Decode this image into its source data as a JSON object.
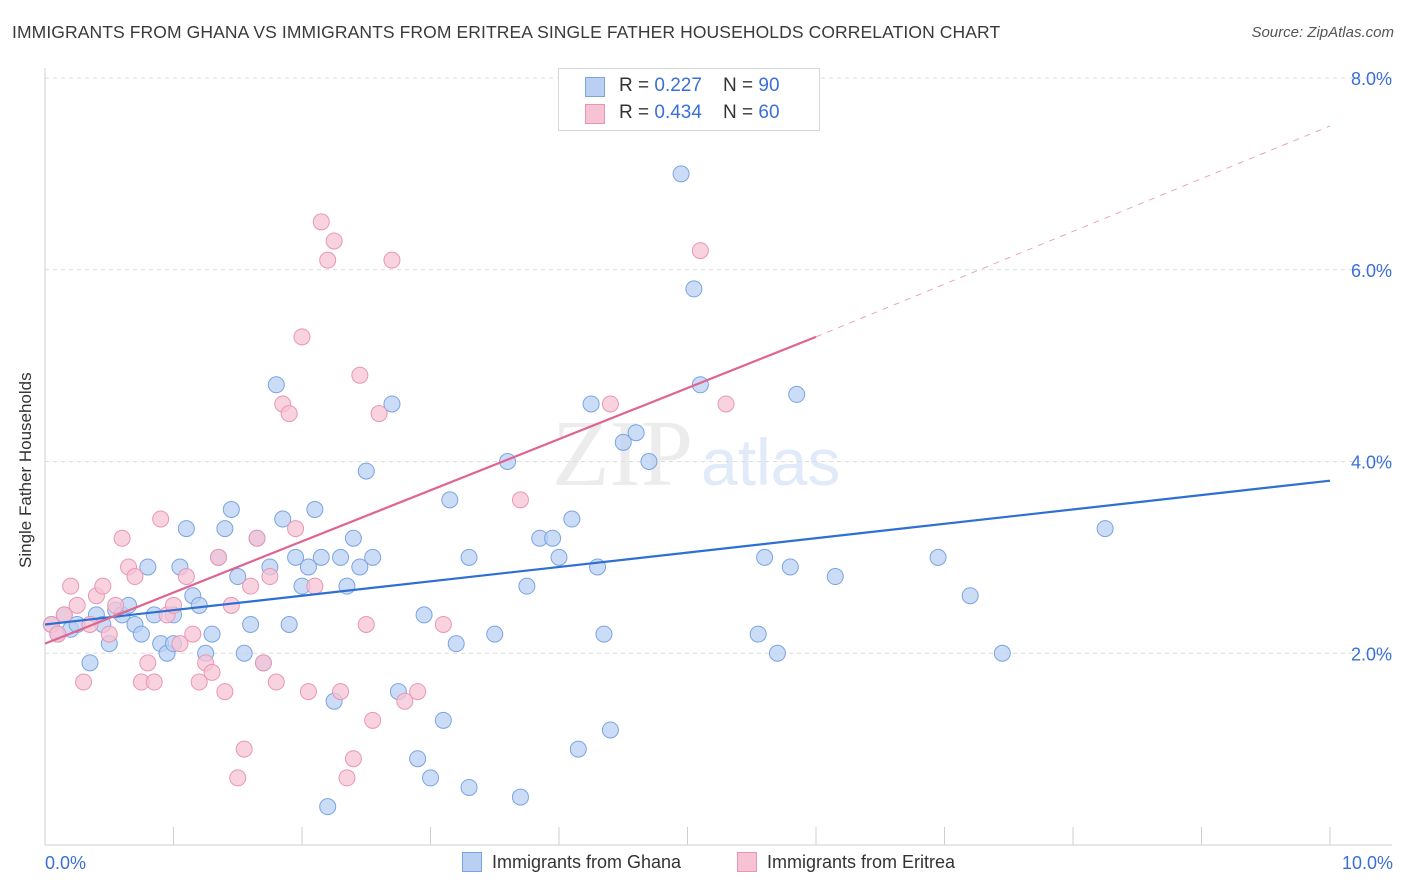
{
  "title": "IMMIGRANTS FROM GHANA VS IMMIGRANTS FROM ERITREA SINGLE FATHER HOUSEHOLDS CORRELATION CHART",
  "source": "Source: ZipAtlas.com",
  "watermark": {
    "zip": "ZIP",
    "atlas": "atlas"
  },
  "legend": {
    "rows": [
      {
        "r_label": "R = ",
        "r_value": "0.227",
        "n_label": "N = ",
        "n_value": "90"
      },
      {
        "r_label": "R = ",
        "r_value": "0.434",
        "n_label": "N = ",
        "n_value": "60"
      }
    ]
  },
  "bottom_legend": {
    "ghana": "Immigrants from Ghana",
    "eritrea": "Immigrants from Eritrea"
  },
  "colors": {
    "ghana_fill": "#b9d0f3",
    "ghana_stroke": "#7aa4e2",
    "ghana_line": "#2e6fd2",
    "eritrea_fill": "#f7c3d4",
    "eritrea_stroke": "#e996b4",
    "eritrea_line": "#e0648f",
    "tick_label": "#3a6fd8",
    "grid": "#dcdcdc"
  },
  "chart_data": {
    "type": "scatter",
    "title": "IMMIGRANTS FROM GHANA VS IMMIGRANTS FROM ERITREA SINGLE FATHER HOUSEHOLDS CORRELATION CHART",
    "xlabel": "",
    "ylabel": "Single Father Households",
    "xlim": [
      0,
      10
    ],
    "ylim": [
      0,
      8.0
    ],
    "x_tick_labels": [
      "0.0%",
      "10.0%"
    ],
    "y_ticks": [
      2.0,
      4.0,
      6.0,
      8.0
    ],
    "y_tick_labels": [
      "2.0%",
      "4.0%",
      "6.0%",
      "8.0%"
    ],
    "grid": "horizontal dashed",
    "legend_position": "top-center",
    "series": [
      {
        "name": "Immigrants from Ghana",
        "r": 0.227,
        "n": 90,
        "trend": {
          "x": [
            0,
            10
          ],
          "y": [
            2.3,
            3.8
          ],
          "style": "solid"
        },
        "points": [
          [
            0.05,
            2.3
          ],
          [
            0.1,
            2.2
          ],
          [
            0.15,
            2.4
          ],
          [
            0.2,
            2.25
          ],
          [
            0.25,
            2.3
          ],
          [
            0.35,
            1.9
          ],
          [
            0.4,
            2.4
          ],
          [
            0.45,
            2.3
          ],
          [
            0.5,
            2.1
          ],
          [
            0.55,
            2.45
          ],
          [
            0.6,
            2.4
          ],
          [
            0.65,
            2.5
          ],
          [
            0.7,
            2.3
          ],
          [
            0.75,
            2.2
          ],
          [
            0.8,
            2.9
          ],
          [
            0.85,
            2.4
          ],
          [
            0.9,
            2.1
          ],
          [
            0.95,
            2.0
          ],
          [
            1.0,
            2.4
          ],
          [
            1.05,
            2.9
          ],
          [
            1.1,
            3.3
          ],
          [
            1.15,
            2.6
          ],
          [
            1.2,
            2.5
          ],
          [
            1.25,
            2.0
          ],
          [
            1.3,
            2.2
          ],
          [
            1.35,
            3.0
          ],
          [
            1.4,
            3.3
          ],
          [
            1.45,
            3.5
          ],
          [
            1.5,
            2.8
          ],
          [
            1.55,
            2.0
          ],
          [
            1.6,
            2.3
          ],
          [
            1.65,
            3.2
          ],
          [
            1.7,
            1.9
          ],
          [
            1.75,
            2.9
          ],
          [
            1.8,
            4.8
          ],
          [
            1.85,
            3.4
          ],
          [
            1.9,
            2.3
          ],
          [
            1.95,
            3.0
          ],
          [
            2.0,
            2.7
          ],
          [
            2.05,
            2.9
          ],
          [
            2.1,
            3.5
          ],
          [
            2.15,
            3.0
          ],
          [
            2.2,
            0.4
          ],
          [
            2.25,
            1.5
          ],
          [
            2.3,
            3.0
          ],
          [
            2.35,
            2.7
          ],
          [
            2.4,
            3.2
          ],
          [
            2.45,
            2.9
          ],
          [
            2.5,
            3.9
          ],
          [
            2.55,
            3.0
          ],
          [
            2.7,
            4.6
          ],
          [
            2.75,
            1.6
          ],
          [
            2.9,
            0.9
          ],
          [
            2.95,
            2.4
          ],
          [
            3.0,
            0.7
          ],
          [
            3.1,
            1.3
          ],
          [
            3.15,
            3.6
          ],
          [
            3.2,
            2.1
          ],
          [
            3.3,
            0.6
          ],
          [
            3.3,
            3.0
          ],
          [
            3.5,
            2.2
          ],
          [
            3.6,
            4.0
          ],
          [
            3.7,
            0.5
          ],
          [
            3.75,
            2.7
          ],
          [
            3.85,
            3.2
          ],
          [
            3.95,
            3.2
          ],
          [
            4.0,
            3.0
          ],
          [
            4.1,
            3.4
          ],
          [
            4.15,
            1.0
          ],
          [
            4.25,
            4.6
          ],
          [
            4.3,
            2.9
          ],
          [
            4.35,
            2.2
          ],
          [
            4.4,
            1.2
          ],
          [
            4.5,
            4.2
          ],
          [
            4.6,
            4.3
          ],
          [
            4.7,
            4.0
          ],
          [
            4.95,
            7.0
          ],
          [
            5.05,
            5.8
          ],
          [
            5.1,
            4.8
          ],
          [
            5.55,
            2.2
          ],
          [
            5.6,
            3.0
          ],
          [
            5.7,
            2.0
          ],
          [
            5.8,
            2.9
          ],
          [
            5.85,
            4.7
          ],
          [
            6.15,
            2.8
          ],
          [
            6.95,
            3.0
          ],
          [
            7.2,
            2.6
          ],
          [
            7.45,
            2.0
          ],
          [
            8.25,
            3.3
          ],
          [
            1.0,
            2.1
          ]
        ]
      },
      {
        "name": "Immigrants from Eritrea",
        "r": 0.434,
        "n": 60,
        "trend": {
          "x": [
            0,
            6
          ],
          "y": [
            2.1,
            5.3
          ],
          "style": "solid"
        },
        "trend_extension": {
          "x": [
            6,
            10
          ],
          "y": [
            5.3,
            7.5
          ],
          "style": "dashed"
        },
        "points": [
          [
            0.05,
            2.3
          ],
          [
            0.1,
            2.2
          ],
          [
            0.15,
            2.4
          ],
          [
            0.2,
            2.7
          ],
          [
            0.25,
            2.5
          ],
          [
            0.3,
            1.7
          ],
          [
            0.35,
            2.3
          ],
          [
            0.4,
            2.6
          ],
          [
            0.45,
            2.7
          ],
          [
            0.5,
            2.2
          ],
          [
            0.55,
            2.5
          ],
          [
            0.6,
            3.2
          ],
          [
            0.65,
            2.9
          ],
          [
            0.7,
            2.8
          ],
          [
            0.75,
            1.7
          ],
          [
            0.8,
            1.9
          ],
          [
            0.85,
            1.7
          ],
          [
            0.9,
            3.4
          ],
          [
            0.95,
            2.4
          ],
          [
            1.0,
            2.5
          ],
          [
            1.05,
            2.1
          ],
          [
            1.1,
            2.8
          ],
          [
            1.15,
            2.2
          ],
          [
            1.2,
            1.7
          ],
          [
            1.25,
            1.9
          ],
          [
            1.3,
            1.8
          ],
          [
            1.35,
            3.0
          ],
          [
            1.4,
            1.6
          ],
          [
            1.45,
            2.5
          ],
          [
            1.5,
            0.7
          ],
          [
            1.55,
            1.0
          ],
          [
            1.6,
            2.7
          ],
          [
            1.65,
            3.2
          ],
          [
            1.7,
            1.9
          ],
          [
            1.75,
            2.8
          ],
          [
            1.8,
            1.7
          ],
          [
            1.85,
            4.6
          ],
          [
            1.9,
            4.5
          ],
          [
            1.95,
            3.3
          ],
          [
            2.0,
            5.3
          ],
          [
            2.05,
            1.6
          ],
          [
            2.1,
            2.7
          ],
          [
            2.15,
            6.5
          ],
          [
            2.2,
            6.1
          ],
          [
            2.25,
            6.3
          ],
          [
            2.3,
            1.6
          ],
          [
            2.35,
            0.7
          ],
          [
            2.4,
            0.9
          ],
          [
            2.45,
            4.9
          ],
          [
            2.5,
            2.3
          ],
          [
            2.55,
            1.3
          ],
          [
            2.6,
            4.5
          ],
          [
            2.7,
            6.1
          ],
          [
            2.8,
            1.5
          ],
          [
            2.9,
            1.6
          ],
          [
            3.1,
            2.3
          ],
          [
            3.7,
            3.6
          ],
          [
            4.4,
            4.6
          ],
          [
            5.1,
            6.2
          ],
          [
            5.3,
            4.6
          ]
        ]
      }
    ]
  }
}
